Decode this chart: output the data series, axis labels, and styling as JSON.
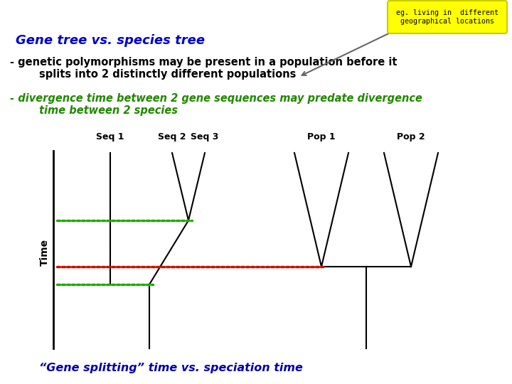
{
  "title": "Gene tree vs. species tree",
  "title_color": "#0000cc",
  "title_fontsize": 13,
  "bullet1_line1": "- genetic polymorphisms may be present in a population before it",
  "bullet1_line2": "        splits into 2 distinctly different populations",
  "bullet1_color": "#000000",
  "bullet2_line1": "- divergence time between 2 gene sequences may predate divergence",
  "bullet2_line2": "        time between 2 species",
  "bullet2_color": "#228800",
  "bottom_label": "“Gene splitting” time vs. speciation time",
  "bottom_label_color": "#0000aa",
  "callout_text": "eg. living in  different\ngeographical locations",
  "callout_bg": "#ffff00",
  "callout_border": "#cccc00",
  "seq_labels": [
    "Seq 1",
    "Seq 2",
    "Seq 3",
    "Pop 1",
    "Pop 2"
  ],
  "seq_label_color": "#000000",
  "time_label": "Time",
  "green_dotted_color": "#22aa00",
  "red_dotted_color": "#cc1100",
  "bg_color": "#ffffff",
  "tree_color": "#000000"
}
